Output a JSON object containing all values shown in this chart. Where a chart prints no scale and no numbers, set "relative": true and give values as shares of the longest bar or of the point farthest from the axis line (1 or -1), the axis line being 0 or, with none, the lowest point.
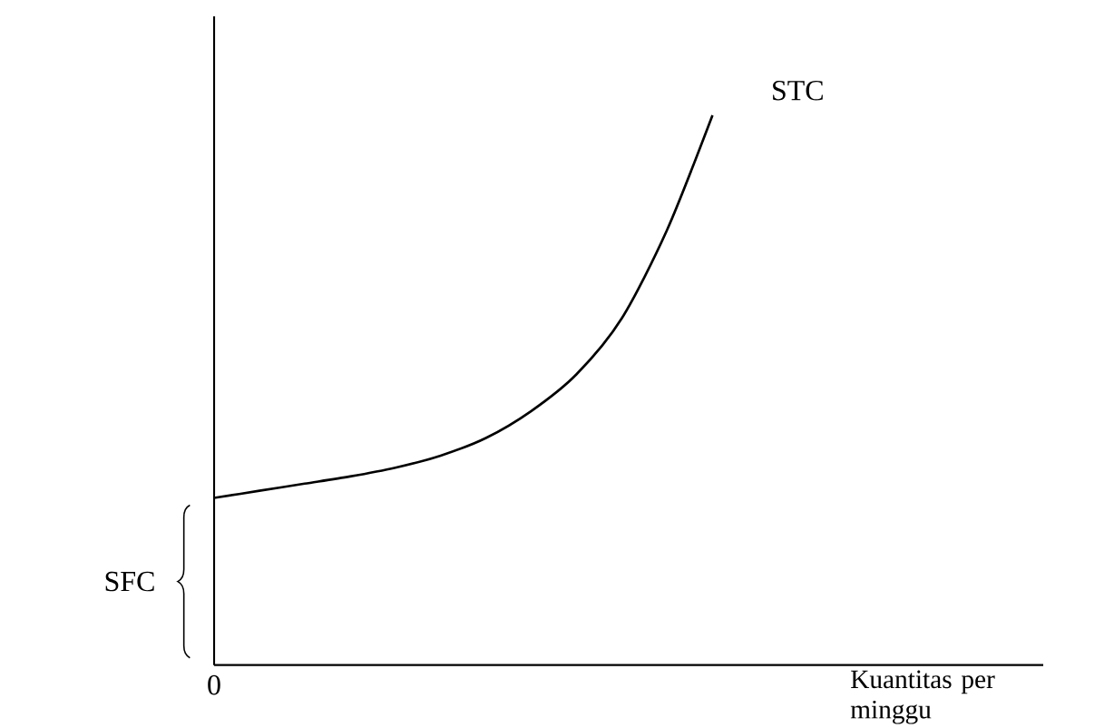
{
  "chart_data": {
    "type": "line",
    "relative": true,
    "xlabel": "Kuantitas per minggu",
    "categories": [
      null,
      null,
      null,
      null,
      null,
      null,
      null,
      null,
      null,
      null,
      null,
      null
    ],
    "series": [
      {
        "name": "STC",
        "color": "#000000",
        "values": [
          0.304,
          0.317,
          0.33,
          0.343,
          0.359,
          0.381,
          0.413,
          0.462,
          0.529,
          0.631,
          0.792,
          1.0
        ]
      }
    ],
    "annotations": [
      "0",
      "SFC"
    ],
    "marker": "none",
    "line_style": "solid"
  }
}
